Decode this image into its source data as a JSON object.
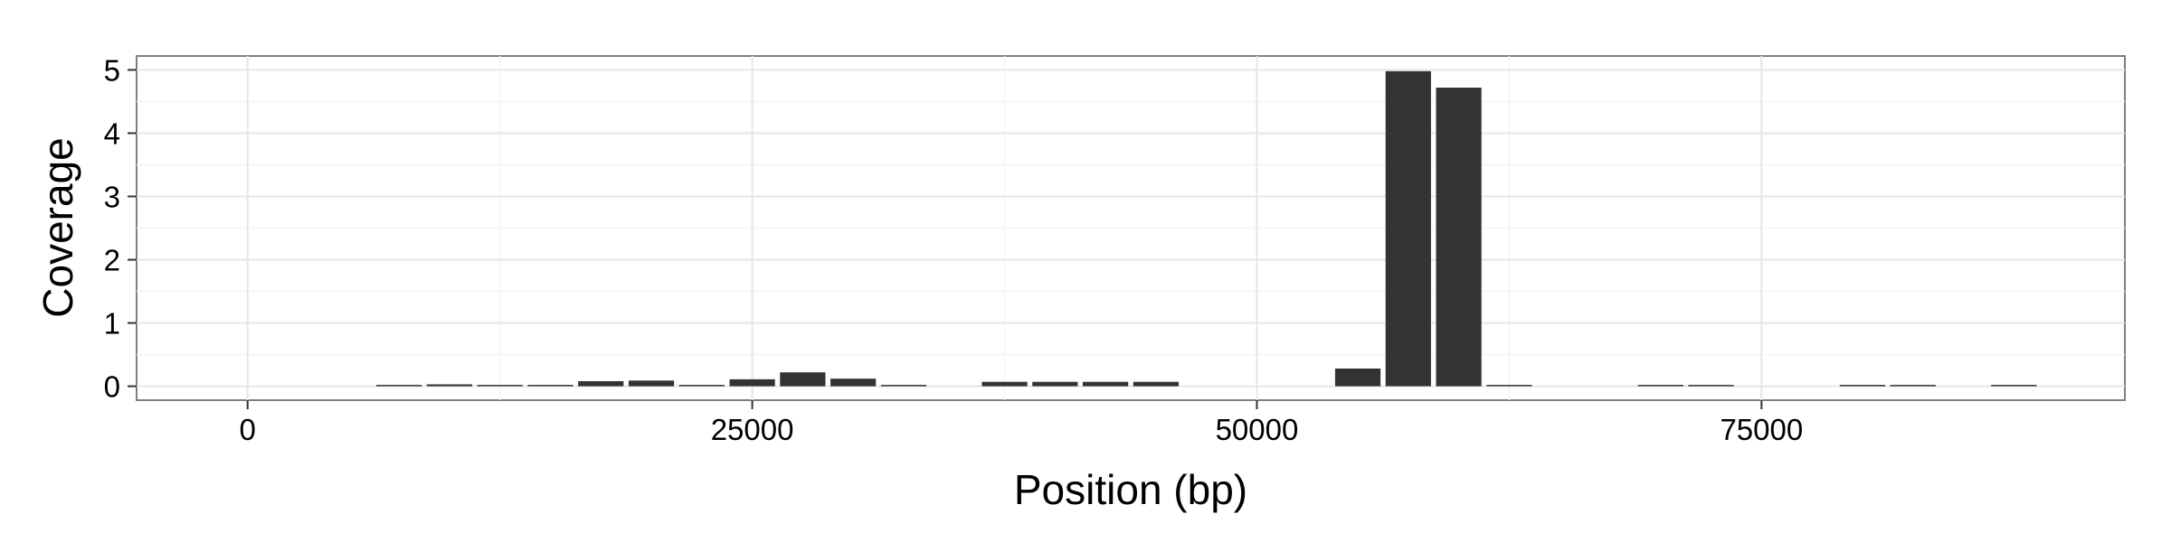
{
  "chart_data": {
    "type": "bar",
    "title": "",
    "xlabel": "Position (bp)",
    "ylabel": "Coverage",
    "xlim": [
      -5500,
      93000
    ],
    "ylim": [
      -0.22,
      5.22
    ],
    "xticks": [
      0,
      25000,
      50000,
      75000
    ],
    "yticks": [
      0,
      1,
      2,
      3,
      4,
      5
    ],
    "grid": true,
    "bin_width": 2500,
    "bar_color": "#333333",
    "x": [
      7500,
      10000,
      12500,
      15000,
      17500,
      20000,
      22500,
      25000,
      27500,
      30000,
      32500,
      37500,
      40000,
      42500,
      45000,
      55000,
      57500,
      60000,
      62500,
      70000,
      72500,
      80000,
      82500,
      87500
    ],
    "values": [
      0.01,
      0.03,
      0.02,
      0.01,
      0.08,
      0.09,
      0.02,
      0.11,
      0.22,
      0.12,
      0.01,
      0.07,
      0.07,
      0.07,
      0.07,
      0.28,
      4.98,
      4.72,
      0.02,
      0.01,
      0.01,
      0.01,
      0.01,
      0.02
    ]
  }
}
